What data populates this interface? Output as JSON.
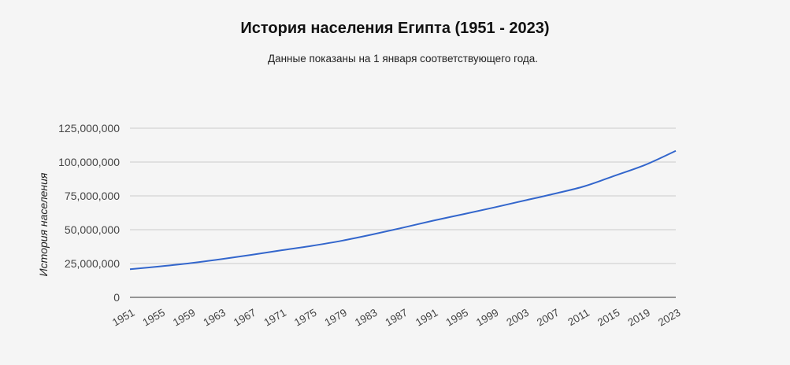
{
  "chart_data": {
    "type": "line",
    "title": "История населения Египта (1951 - 2023)",
    "subtitle": "Данные показаны на 1 января соответствующего года.",
    "xlabel": "",
    "ylabel": "История населения",
    "ylim": [
      0,
      125000000
    ],
    "yticks": [
      0,
      25000000,
      50000000,
      75000000,
      100000000,
      125000000
    ],
    "ytick_labels": [
      "0",
      "25,000,000",
      "50,000,000",
      "75,000,000",
      "100,000,000",
      "125,000,000"
    ],
    "xlim": [
      1951,
      2023
    ],
    "xticks": [
      1951,
      1955,
      1959,
      1963,
      1967,
      1971,
      1975,
      1979,
      1983,
      1987,
      1991,
      1995,
      1999,
      2003,
      2007,
      2011,
      2015,
      2019,
      2023
    ],
    "grid": true,
    "legend": "none",
    "color": "#3366cc",
    "series": [
      {
        "x": [
          1951,
          1955,
          1959,
          1963,
          1967,
          1971,
          1975,
          1979,
          1983,
          1987,
          1991,
          1995,
          1999,
          2003,
          2007,
          2011,
          2015,
          2019,
          2023
        ],
        "y": [
          20800000,
          22900000,
          25300000,
          28200000,
          31400000,
          34800000,
          38100000,
          41900000,
          46500000,
          51500000,
          56700000,
          61500000,
          66400000,
          71500000,
          76600000,
          82200000,
          90000000,
          98000000,
          108300000
        ]
      }
    ]
  }
}
